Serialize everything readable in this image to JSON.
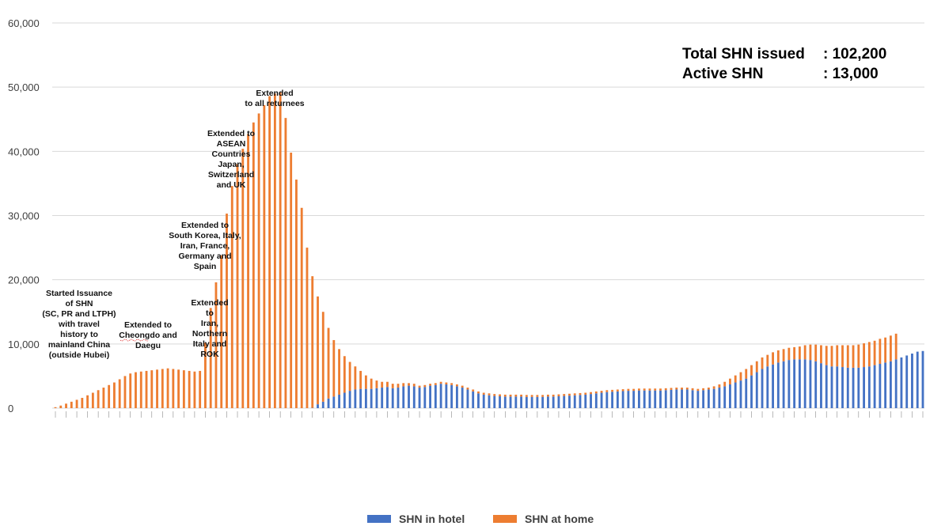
{
  "chart_data": {
    "type": "bar",
    "stacked": true,
    "ylim": [
      0,
      60000
    ],
    "y_ticks": [
      "0",
      "10,000",
      "20,000",
      "30,000",
      "40,000",
      "50,000",
      "60,000"
    ],
    "grid": "horizontal",
    "legend_position": "bottom",
    "series": [
      {
        "name": "SHN in hotel",
        "color": "#4472C4",
        "values": [
          0,
          0,
          0,
          0,
          0,
          0,
          0,
          0,
          0,
          0,
          0,
          0,
          0,
          0,
          0,
          0,
          0,
          0,
          0,
          0,
          0,
          0,
          0,
          0,
          0,
          0,
          0,
          0,
          0,
          0,
          0,
          0,
          0,
          0,
          0,
          0,
          0,
          0,
          0,
          0,
          0,
          0,
          0,
          0,
          0,
          0,
          0,
          0,
          50,
          600,
          1000,
          1500,
          1800,
          2100,
          2400,
          2700,
          2900,
          3000,
          3000,
          3000,
          3100,
          3200,
          3300,
          3100,
          3200,
          3400,
          3500,
          3400,
          3200,
          3300,
          3500,
          3600,
          3800,
          3700,
          3600,
          3400,
          3200,
          2900,
          2600,
          2300,
          2100,
          2000,
          1900,
          1850,
          1800,
          1800,
          1800,
          1800,
          1750,
          1750,
          1750,
          1750,
          1800,
          1800,
          1850,
          1900,
          1950,
          2000,
          2050,
          2100,
          2200,
          2300,
          2400,
          2500,
          2550,
          2600,
          2650,
          2700,
          2700,
          2750,
          2750,
          2750,
          2750,
          2750,
          2800,
          2850,
          2900,
          2900,
          2900,
          2800,
          2700,
          2800,
          2900,
          3000,
          3200,
          3400,
          3700,
          4000,
          4300,
          4600,
          5100,
          5600,
          6100,
          6500,
          6800,
          7100,
          7300,
          7500,
          7600,
          7600,
          7600,
          7500,
          7300,
          7000,
          6700,
          6500,
          6500,
          6400,
          6300,
          6300,
          6300,
          6400,
          6500,
          6700,
          6900,
          7100,
          7300,
          7600,
          7900,
          8200,
          8500,
          8800,
          8900
        ]
      },
      {
        "name": "SHN at home",
        "color": "#ED7D31",
        "values": [
          150,
          400,
          700,
          1000,
          1300,
          1600,
          2000,
          2400,
          2800,
          3200,
          3600,
          4000,
          4500,
          5000,
          5400,
          5600,
          5700,
          5800,
          5900,
          6000,
          6100,
          6200,
          6100,
          6000,
          5900,
          5800,
          5700,
          5800,
          10200,
          15600,
          19600,
          23800,
          30300,
          34600,
          38000,
          40400,
          42700,
          44500,
          45900,
          47200,
          48600,
          49000,
          49200,
          45200,
          39800,
          35600,
          31200,
          25000,
          20500,
          16800,
          14000,
          11000,
          8800,
          7100,
          5700,
          4500,
          3600,
          2800,
          2100,
          1600,
          1200,
          900,
          800,
          700,
          600,
          500,
          400,
          400,
          300,
          300,
          300,
          300,
          300,
          300,
          300,
          300,
          300,
          300,
          300,
          300,
          300,
          300,
          300,
          300,
          300,
          300,
          300,
          300,
          300,
          300,
          300,
          300,
          300,
          300,
          300,
          300,
          300,
          300,
          300,
          300,
          300,
          300,
          300,
          300,
          300,
          300,
          300,
          300,
          300,
          300,
          300,
          300,
          300,
          300,
          300,
          300,
          300,
          300,
          300,
          300,
          300,
          300,
          300,
          400,
          500,
          700,
          900,
          1100,
          1300,
          1500,
          1600,
          1700,
          1800,
          1800,
          1900,
          1900,
          1900,
          1900,
          1900,
          2000,
          2200,
          2400,
          2600,
          2800,
          3000,
          3200,
          3300,
          3400,
          3500,
          3500,
          3600,
          3700,
          3800,
          3800,
          3900,
          3900,
          4000,
          4000
        ]
      }
    ],
    "annotations": [
      {
        "lines": [
          "Started Issuance",
          "of SHN",
          "(SC, PR and LTPH)",
          "with travel",
          "history to",
          "mainland China",
          "(outside Hubei)"
        ]
      },
      {
        "lines": [
          "Extended to",
          "Cheongdo and",
          "Daegu"
        ]
      },
      {
        "lines": [
          "Extended",
          "to",
          "Iran,",
          "Northern",
          "Italy and",
          "ROK"
        ]
      },
      {
        "lines": [
          "Extended to",
          "South Korea, Italy,",
          "Iran, France,",
          "Germany and",
          "Spain"
        ]
      },
      {
        "lines": [
          "Extended to",
          "ASEAN",
          "Countries",
          "Japan,",
          "Switzerland",
          "and UK"
        ]
      },
      {
        "lines": [
          "Extended",
          "to all returnees"
        ]
      }
    ],
    "summary": [
      {
        "label": "Total SHN issued",
        "value": ": 102,200"
      },
      {
        "label": "Active SHN",
        "value": ": 13,000"
      }
    ]
  }
}
